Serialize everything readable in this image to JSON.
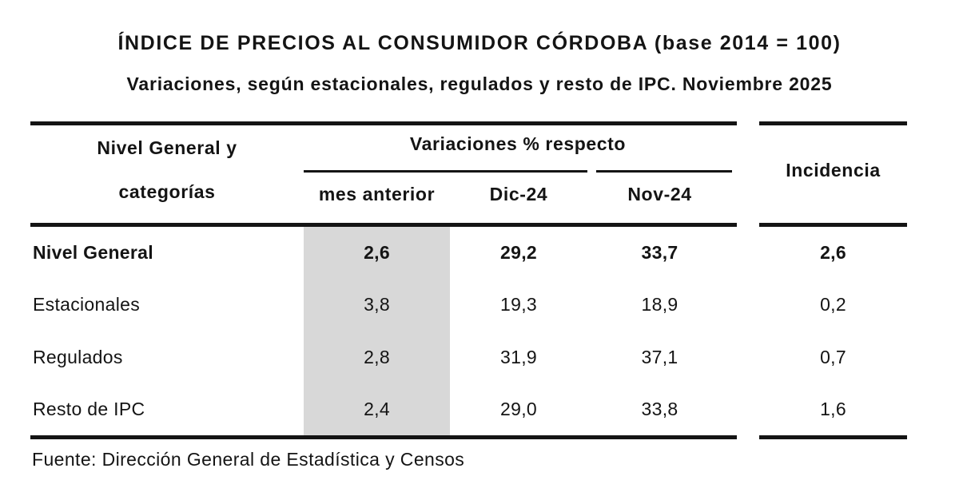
{
  "title": "ÍNDICE DE PRECIOS AL CONSUMIDOR CÓRDOBA (base 2014 = 100)",
  "subtitle": "Variaciones, según estacionales, regulados y resto de IPC. Noviembre 2025",
  "table": {
    "row_header_line1": "Nivel General y",
    "row_header_line2": "categorías",
    "group_header": "Variaciones % respecto",
    "sub_headers": {
      "mes_anterior": "mes anterior",
      "dic_24": "Dic-24",
      "nov_24": "Nov-24"
    },
    "incidencia_header": "Incidencia",
    "rows": [
      {
        "label": "Nivel General",
        "values": [
          "2,6",
          "29,2",
          "33,7",
          "2,6"
        ]
      },
      {
        "label": "Estacionales",
        "values": [
          "3,8",
          "19,3",
          "18,9",
          "0,2"
        ]
      },
      {
        "label": "Regulados",
        "values": [
          "2,8",
          "31,9",
          "37,1",
          "0,7"
        ]
      },
      {
        "label": "Resto de IPC",
        "values": [
          "2,4",
          "29,0",
          "33,8",
          "1,6"
        ]
      }
    ]
  },
  "footer": "Fuente: Dirección General de Estadística y Censos",
  "colors": {
    "background": "#ffffff",
    "text": "#141414",
    "rule": "#141414",
    "highlight_column": "#d8d8d8"
  },
  "chart_data": {
    "type": "table",
    "title": "ÍNDICE DE PRECIOS AL CONSUMIDOR CÓRDOBA (base 2014 = 100)",
    "subtitle": "Variaciones, según estacionales, regulados y resto de IPC. Noviembre 2025",
    "columns": [
      "Nivel General y categorías",
      "Variación % respecto mes anterior",
      "Variación % respecto Dic-24",
      "Variación % respecto Nov-24",
      "Incidencia"
    ],
    "rows": [
      [
        "Nivel General",
        2.6,
        29.2,
        33.7,
        2.6
      ],
      [
        "Estacionales",
        3.8,
        19.3,
        18.9,
        0.2
      ],
      [
        "Regulados",
        2.8,
        31.9,
        37.1,
        0.7
      ],
      [
        "Resto de IPC",
        2.4,
        29.0,
        33.8,
        1.6
      ]
    ],
    "highlighted_column": "mes anterior",
    "source": "Fuente: Dirección General de Estadística y Censos"
  }
}
